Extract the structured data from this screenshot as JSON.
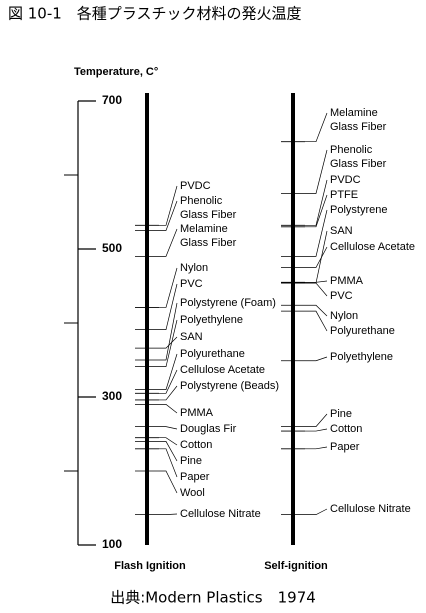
{
  "chart_data": {
    "type": "strip",
    "title": "図 10-1　各種プラスチック材料の発火温度",
    "y_label": "Temperature, C°",
    "source": "出典:Modern Plastics　1974",
    "ylim": [
      100,
      700
    ],
    "yticks": [
      100,
      300,
      500,
      700
    ],
    "yminorticks": [
      200,
      400,
      600
    ],
    "series": [
      {
        "name": "Flash Ignition",
        "labels": [
          [
            "PVDC"
          ],
          [
            "Phenolic",
            "Glass Fiber"
          ],
          [
            "Melamine",
            "Glass Fiber"
          ],
          [
            "Nylon"
          ],
          [
            "PVC"
          ],
          [
            "Polystyrene (Foam)"
          ],
          [
            "Polyethylene"
          ],
          [
            "SAN"
          ],
          [
            "Polyurethane"
          ],
          [
            "Cellulose Acetate"
          ],
          [
            "Polystyrene (Beads)"
          ],
          [
            "PMMA"
          ],
          [
            "Douglas Fir"
          ],
          [
            "Cotton"
          ],
          [
            "Pine"
          ],
          [
            "Paper"
          ],
          [
            "Wool"
          ],
          [
            "Cellulose Nitrate"
          ]
        ],
        "values": [
          532,
          525,
          490,
          421,
          391,
          350,
          341,
          366,
          310,
          305,
          296,
          290,
          260,
          245,
          240,
          230,
          200,
          141
        ]
      },
      {
        "name": "Self-ignition",
        "labels": [
          [
            "Melamine",
            "Glass Fiber"
          ],
          [
            "Phenolic",
            "Glass Fiber"
          ],
          [
            "PVDC"
          ],
          [
            "PTFE"
          ],
          [
            "Polystyrene"
          ],
          [
            "SAN"
          ],
          [
            "Cellulose Acetate"
          ],
          [
            "PMMA"
          ],
          [
            "PVC"
          ],
          [
            "Nylon"
          ],
          [
            "Polyurethane"
          ],
          [
            "Polyethylene"
          ],
          [
            "Pine"
          ],
          [
            "Cotton"
          ],
          [
            "Paper"
          ],
          [
            "Cellulose Nitrate"
          ]
        ],
        "values": [
          645,
          575,
          532,
          530,
          490,
          454,
          475,
          455,
          454,
          424,
          416,
          349,
          260,
          254,
          230,
          141
        ]
      }
    ]
  }
}
